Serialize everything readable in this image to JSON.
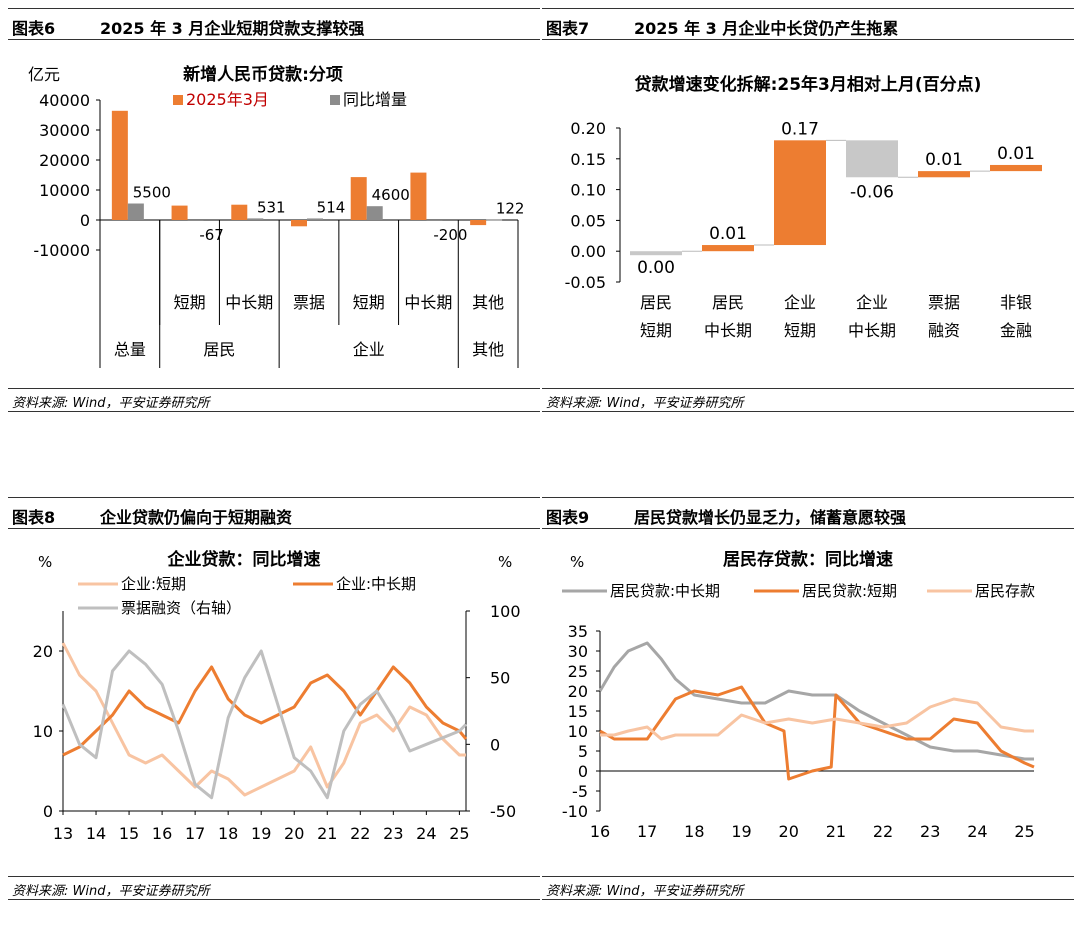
{
  "panels": [
    {
      "label": "图表6",
      "title": "2025 年 3 月企业短期贷款支撑较强",
      "source": "资料来源: Wind，平安证券研究所"
    },
    {
      "label": "图表7",
      "title": "2025 年 3 月企业中长贷仍产生拖累",
      "source": "资料来源: Wind，平安证券研究所"
    },
    {
      "label": "图表8",
      "title": "企业贷款仍偏向于短期融资",
      "source": "资料来源: Wind，平安证券研究所"
    },
    {
      "label": "图表9",
      "title": "居民贷款增长仍显乏力，储蓄意愿较强",
      "source": "资料来源: Wind，平安证券研究所"
    }
  ],
  "chart_data": [
    {
      "type": "bar",
      "title": "新增人民币贷款:分项",
      "unit": "亿元",
      "ylim": [
        -10000,
        40000
      ],
      "yticks": [
        "40000",
        "30000",
        "20000",
        "10000",
        "0",
        "-10000"
      ],
      "categories": [
        "总量",
        "短期",
        "中长期",
        "票据",
        "短期",
        "中长期",
        "其他"
      ],
      "groups": [
        "总量",
        "居民",
        "企业",
        "其他"
      ],
      "colors": {
        "march": "#ED7D31",
        "yoy": "#8C8C8C"
      },
      "series": [
        {
          "name": "2025年3月",
          "values": [
            36400,
            4800,
            5100,
            -2100,
            14300,
            15800,
            -1700
          ]
        },
        {
          "name": "同比增量",
          "values": [
            5500,
            -67,
            531,
            514,
            4600,
            -200,
            122
          ]
        }
      ],
      "data_labels": [
        "5500",
        "-67",
        "531",
        "514",
        "4600",
        "-200",
        "122"
      ]
    },
    {
      "type": "bar",
      "subtype": "waterfall",
      "title": "贷款增速变化拆解:25年3月相对上月(百分点)",
      "ylim": [
        -0.05,
        0.2
      ],
      "yticks": [
        "0.20",
        "0.15",
        "0.10",
        "0.05",
        "0.00",
        "-0.05"
      ],
      "categories": [
        "居民短期",
        "居民中长期",
        "企业短期",
        "企业中长期",
        "票据融资",
        "非银金融"
      ],
      "category_lines": [
        [
          "居民",
          "短期"
        ],
        [
          "居民",
          "中长期"
        ],
        [
          "企业",
          "短期"
        ],
        [
          "企业",
          "中长期"
        ],
        [
          "票据",
          "融资"
        ],
        [
          "非银",
          "金融"
        ]
      ],
      "values": [
        0.0,
        0.01,
        0.17,
        -0.06,
        0.01,
        0.01
      ],
      "data_labels": [
        "0.00",
        "0.01",
        "0.17",
        "-0.06",
        "0.01",
        "0.01"
      ],
      "colors": {
        "positive": "#ED7D31",
        "negative": "#C8C8C8",
        "zero": "#C8C8C8"
      }
    },
    {
      "type": "line",
      "title": "企业贷款：同比增速",
      "ylabel_left": "%",
      "ylabel_right": "%",
      "ylim_left": [
        0,
        25
      ],
      "ylim_right": [
        -50,
        100
      ],
      "yticks_left": [
        "20",
        "10",
        "0"
      ],
      "yticks_right": [
        "100",
        "50",
        "0",
        "-50"
      ],
      "xticks": [
        "13",
        "14",
        "15",
        "16",
        "17",
        "18",
        "19",
        "20",
        "21",
        "22",
        "23",
        "24",
        "25"
      ],
      "series": [
        {
          "name": "企业:短期",
          "axis": "left",
          "color": "#F8C4A2",
          "x": [
            13,
            13.5,
            14,
            14.5,
            15,
            15.5,
            16,
            16.5,
            17,
            17.5,
            18,
            18.5,
            19,
            19.5,
            20,
            20.5,
            21,
            21.5,
            22,
            22.5,
            23,
            23.5,
            24,
            24.5,
            25,
            25.2
          ],
          "values": [
            21,
            17,
            15,
            11,
            7,
            6,
            7,
            5,
            3,
            5,
            4,
            2,
            3,
            4,
            5,
            8,
            3,
            6,
            11,
            12,
            10,
            13,
            12,
            9,
            7,
            7
          ]
        },
        {
          "name": "企业:中长期",
          "axis": "left",
          "color": "#ED7D31",
          "x": [
            13,
            13.5,
            14,
            14.5,
            15,
            15.5,
            16,
            16.5,
            17,
            17.5,
            18,
            18.5,
            19,
            19.5,
            20,
            20.5,
            21,
            21.5,
            22,
            22.5,
            23,
            23.5,
            24,
            24.5,
            25,
            25.2
          ],
          "values": [
            7,
            8,
            10,
            12,
            15,
            13,
            12,
            11,
            15,
            18,
            14,
            12,
            11,
            12,
            13,
            16,
            17,
            15,
            12,
            15,
            18,
            16,
            13,
            11,
            10,
            9
          ]
        },
        {
          "name": "票据融资（右轴）",
          "axis": "right",
          "color": "#BFBFBF",
          "x": [
            13,
            13.5,
            14,
            14.5,
            15,
            15.5,
            16,
            16.5,
            17,
            17.5,
            18,
            18.5,
            19,
            19.5,
            20,
            20.5,
            21,
            21.5,
            22,
            22.5,
            23,
            23.5,
            24,
            24.5,
            25,
            25.2
          ],
          "values": [
            30,
            0,
            -10,
            55,
            70,
            60,
            45,
            10,
            -30,
            -40,
            20,
            50,
            70,
            30,
            -10,
            -20,
            -40,
            10,
            30,
            40,
            20,
            -5,
            0,
            5,
            10,
            15
          ]
        }
      ]
    },
    {
      "type": "line",
      "title": "居民存贷款：同比增速",
      "ylabel": "%",
      "ylim": [
        -10,
        35
      ],
      "yticks": [
        "35",
        "30",
        "25",
        "20",
        "15",
        "10",
        "5",
        "0",
        "-5",
        "-10"
      ],
      "xticks": [
        "16",
        "17",
        "18",
        "19",
        "20",
        "21",
        "22",
        "23",
        "24",
        "25"
      ],
      "series": [
        {
          "name": "居民贷款:中长期",
          "color": "#A6A6A6",
          "x": [
            16,
            16.3,
            16.6,
            17,
            17.3,
            17.6,
            18,
            18.5,
            19,
            19.5,
            20,
            20.5,
            21,
            21.5,
            22,
            22.5,
            23,
            23.5,
            24,
            24.5,
            25,
            25.2
          ],
          "values": [
            20,
            26,
            30,
            32,
            28,
            23,
            19,
            18,
            17,
            17,
            20,
            19,
            19,
            15,
            12,
            9,
            6,
            5,
            5,
            4,
            3,
            3
          ]
        },
        {
          "name": "居民贷款:短期",
          "color": "#ED7D31",
          "x": [
            16,
            16.3,
            16.6,
            17,
            17.3,
            17.6,
            18,
            18.5,
            19,
            19.5,
            19.9,
            20,
            20.5,
            20.9,
            21,
            21.5,
            22,
            22.5,
            23,
            23.5,
            24,
            24.5,
            25,
            25.2
          ],
          "values": [
            10,
            8,
            8,
            8,
            13,
            18,
            20,
            19,
            21,
            12,
            10,
            -2,
            0,
            1,
            19,
            12,
            10,
            8,
            8,
            13,
            12,
            5,
            2,
            1
          ]
        },
        {
          "name": "居民存款",
          "color": "#F8C4A2",
          "x": [
            16,
            16.3,
            16.6,
            17,
            17.3,
            17.6,
            18,
            18.5,
            19,
            19.5,
            20,
            20.5,
            21,
            21.5,
            22,
            22.5,
            23,
            23.5,
            24,
            24.5,
            25,
            25.2
          ],
          "values": [
            9,
            9,
            10,
            11,
            8,
            9,
            9,
            9,
            14,
            12,
            13,
            12,
            13,
            12,
            11,
            12,
            16,
            18,
            17,
            11,
            10,
            10
          ]
        }
      ]
    }
  ]
}
